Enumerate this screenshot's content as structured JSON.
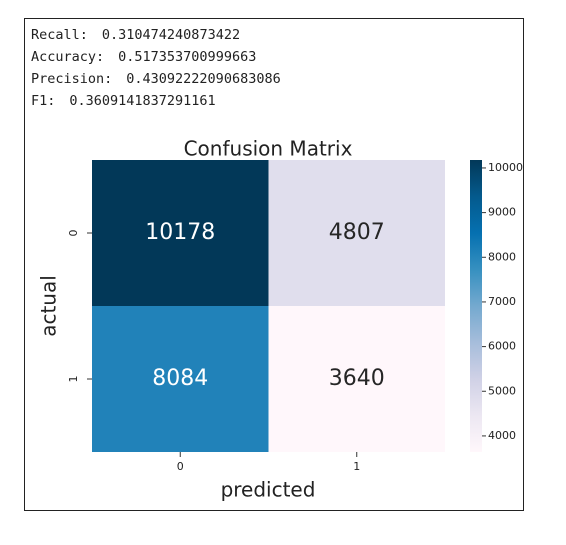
{
  "metrics": [
    {
      "label": "Recall:",
      "value": "0.310474240873422"
    },
    {
      "label": "Accuracy:",
      "value": "0.517353700999663"
    },
    {
      "label": "Precision:",
      "value": "0.43092222090683086"
    },
    {
      "label": "F1:",
      "value": "0.3609141837291161"
    }
  ],
  "chart_data": {
    "type": "heatmap",
    "title": "Confusion Matrix",
    "x_label": "predicted",
    "y_label": "actual",
    "x_categories": [
      "0",
      "1"
    ],
    "y_categories": [
      "0",
      "1"
    ],
    "values": [
      [
        10178,
        4807
      ],
      [
        8084,
        3640
      ]
    ],
    "colormap": [
      "#fff7fb",
      "#ece7f2",
      "#d0d1e6",
      "#a6bddb",
      "#74a9cf",
      "#3690c0",
      "#0570b0",
      "#045a8d",
      "#023858"
    ],
    "clim": [
      3640,
      10178
    ],
    "cticks": [
      4000,
      5000,
      6000,
      7000,
      8000,
      9000,
      10000
    ]
  }
}
